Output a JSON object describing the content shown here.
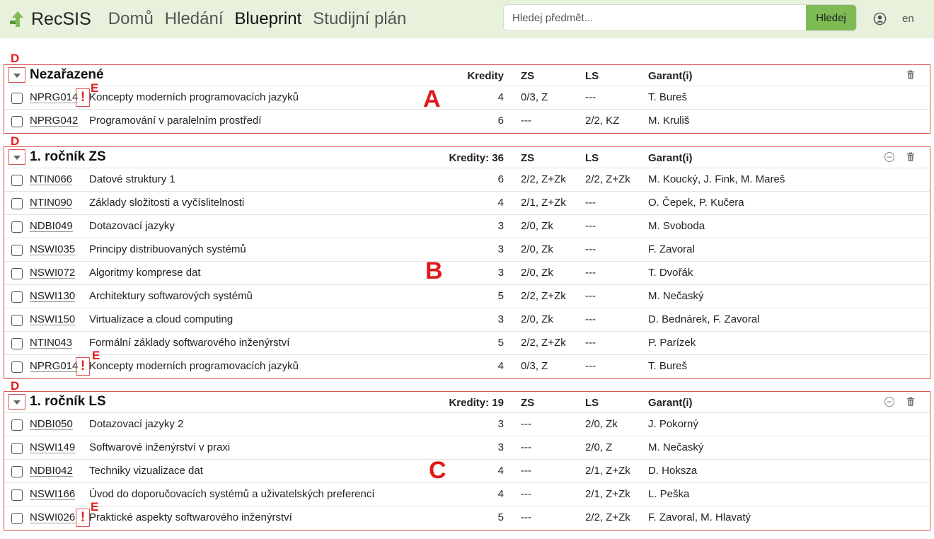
{
  "app": {
    "brand": "RecSIS",
    "nav": [
      "Domů",
      "Hledání",
      "Blueprint",
      "Studijní plán"
    ],
    "active_nav": "Blueprint",
    "search": {
      "placeholder": "Hledej předmět...",
      "button": "Hledej"
    },
    "lang": "en"
  },
  "columns": {
    "credits": "Kredity",
    "zs": "ZS",
    "ls": "LS",
    "garant": "Garant(i)"
  },
  "blocks": [
    {
      "title": "Nezařazené",
      "credits_label": "Kredity",
      "rows": [
        {
          "code": "NPRG014",
          "warn": true,
          "name": "Koncepty moderních programovacích jazyků",
          "credits": "4",
          "zs": "0/3, Z",
          "ls": "---",
          "garant": "T. Bureš"
        },
        {
          "code": "NPRG042",
          "warn": false,
          "name": "Programování v paralelním prostředí",
          "credits": "6",
          "zs": "---",
          "ls": "2/2, KZ",
          "garant": "M. Kruliš"
        }
      ]
    },
    {
      "title": "1. ročník ZS",
      "credits_label": "Kredity: 36",
      "rows": [
        {
          "code": "NTIN066",
          "warn": false,
          "name": "Datové struktury 1",
          "credits": "6",
          "zs": "2/2, Z+Zk",
          "ls": "2/2, Z+Zk",
          "garant": "M. Koucký, J. Fink, M. Mareš"
        },
        {
          "code": "NTIN090",
          "warn": false,
          "name": "Základy složitosti a vyčíslitelnosti",
          "credits": "4",
          "zs": "2/1, Z+Zk",
          "ls": "---",
          "garant": "O. Čepek, P. Kučera"
        },
        {
          "code": "NDBI049",
          "warn": false,
          "name": "Dotazovací jazyky",
          "credits": "3",
          "zs": "2/0, Zk",
          "ls": "---",
          "garant": "M. Svoboda"
        },
        {
          "code": "NSWI035",
          "warn": false,
          "name": "Principy distribuovaných systémů",
          "credits": "3",
          "zs": "2/0, Zk",
          "ls": "---",
          "garant": "F. Zavoral"
        },
        {
          "code": "NSWI072",
          "warn": false,
          "name": "Algoritmy komprese dat",
          "credits": "3",
          "zs": "2/0, Zk",
          "ls": "---",
          "garant": "T. Dvořák"
        },
        {
          "code": "NSWI130",
          "warn": false,
          "name": "Architektury softwarových systémů",
          "credits": "5",
          "zs": "2/2, Z+Zk",
          "ls": "---",
          "garant": "M. Nečaský"
        },
        {
          "code": "NSWI150",
          "warn": false,
          "name": "Virtualizace a cloud computing",
          "credits": "3",
          "zs": "2/0, Zk",
          "ls": "---",
          "garant": "D. Bednárek, F. Zavoral"
        },
        {
          "code": "NTIN043",
          "warn": false,
          "name": "Formální základy softwarového inženýrství",
          "credits": "5",
          "zs": "2/2, Z+Zk",
          "ls": "---",
          "garant": "P. Parízek"
        },
        {
          "code": "NPRG014",
          "warn": true,
          "name": "Koncepty moderních programovacích jazyků",
          "credits": "4",
          "zs": "0/3, Z",
          "ls": "---",
          "garant": "T. Bureš"
        }
      ]
    },
    {
      "title": "1. ročník LS",
      "credits_label": "Kredity: 19",
      "rows": [
        {
          "code": "NDBI050",
          "warn": false,
          "name": "Dotazovací jazyky 2",
          "credits": "3",
          "zs": "---",
          "ls": "2/0, Zk",
          "garant": "J. Pokorný"
        },
        {
          "code": "NSWI149",
          "warn": false,
          "name": "Softwarové inženýrství v praxi",
          "credits": "3",
          "zs": "---",
          "ls": "2/0, Z",
          "garant": "M. Nečaský"
        },
        {
          "code": "NDBI042",
          "warn": false,
          "name": "Techniky vizualizace dat",
          "credits": "4",
          "zs": "---",
          "ls": "2/1, Z+Zk",
          "garant": "D. Hoksza"
        },
        {
          "code": "NSWI166",
          "warn": false,
          "name": "Úvod do doporučovacích systémů a uživatelských preferencí",
          "credits": "4",
          "zs": "---",
          "ls": "2/1, Z+Zk",
          "garant": "L. Peška"
        },
        {
          "code": "NSWI026",
          "warn": true,
          "name": "Praktické aspekty softwarového inženýrství",
          "credits": "5",
          "zs": "---",
          "ls": "2/2, Z+Zk",
          "garant": "F. Zavoral, M. Hlavatý"
        }
      ]
    }
  ],
  "annotations": {
    "block_labels": [
      "A",
      "B",
      "C"
    ],
    "toggle_label": "D",
    "warn_label": "E",
    "warn_symbol": "!"
  },
  "colors": {
    "navbar_bg": "#e7f1dc",
    "search_button": "#7fbb55",
    "annotation_red": "#e01b1b"
  }
}
